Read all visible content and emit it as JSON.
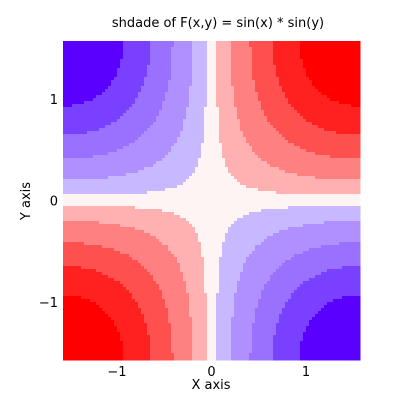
{
  "chart_data": {
    "type": "heatmap",
    "title": "shdade of F(x,y) = sin(x) * sin(y)",
    "xlabel": "X axis",
    "ylabel": "Y axis",
    "function": "sin(x) * sin(y)",
    "xlim": [
      -1.5708,
      1.5708
    ],
    "ylim": [
      -1.5708,
      1.5708
    ],
    "x_ticks": [
      {
        "value": -1,
        "label": "−1"
      },
      {
        "value": 0,
        "label": "0"
      },
      {
        "value": 1,
        "label": "1"
      }
    ],
    "y_ticks": [
      {
        "value": -1,
        "label": "−1"
      },
      {
        "value": 0,
        "label": "0"
      },
      {
        "value": 1,
        "label": "1"
      }
    ],
    "levels": [
      -1,
      -0.8,
      -0.6,
      -0.4,
      -0.2,
      -0.05,
      0.05,
      0.2,
      0.4,
      0.6,
      0.8,
      1
    ],
    "colors": [
      "#5a00ff",
      "#7a40ff",
      "#9a70ff",
      "#b090ff",
      "#c8b8ff",
      "#fff4f4",
      "#ffb0b0",
      "#ff8080",
      "#ff5050",
      "#ff2020",
      "#ff0000"
    ],
    "grid": false
  }
}
